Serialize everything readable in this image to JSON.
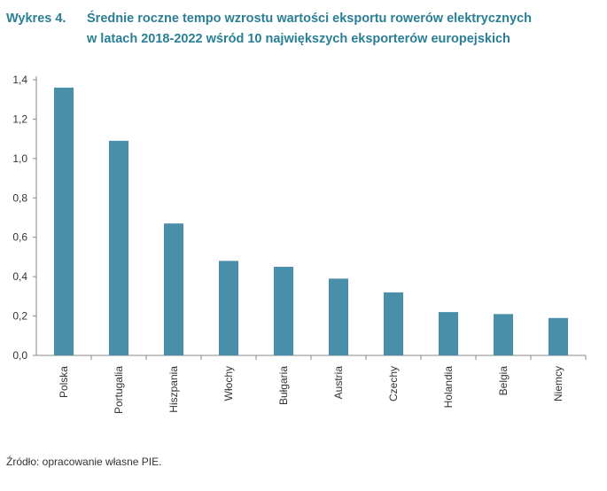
{
  "title": {
    "label": "Wykres 4.",
    "line1": "Średnie roczne tempo wzrostu wartości eksportu rowerów elektrycznych",
    "line2": "w latach 2018-2022 wśród 10 największych eksporterów europejskich"
  },
  "source": "Źródło: opracowanie własne PIE.",
  "chart_data": {
    "type": "bar",
    "categories": [
      "Polska",
      "Portugalia",
      "Hiszpania",
      "Włochy",
      "Bułgaria",
      "Austria",
      "Czechy",
      "Holandia",
      "Belgia",
      "Niemcy"
    ],
    "values": [
      1.36,
      1.09,
      0.67,
      0.48,
      0.45,
      0.39,
      0.32,
      0.22,
      0.21,
      0.19
    ],
    "yticks": [
      "0,0",
      "0,2",
      "0,4",
      "0,6",
      "0,8",
      "1,0",
      "1,2",
      "1,4"
    ],
    "ylim": [
      0,
      1.4
    ],
    "xlabel": "",
    "ylabel": "",
    "grid": false,
    "colors": {
      "bar": "#4a8faa",
      "axis": "#888888",
      "title": "#2a7f95"
    }
  }
}
